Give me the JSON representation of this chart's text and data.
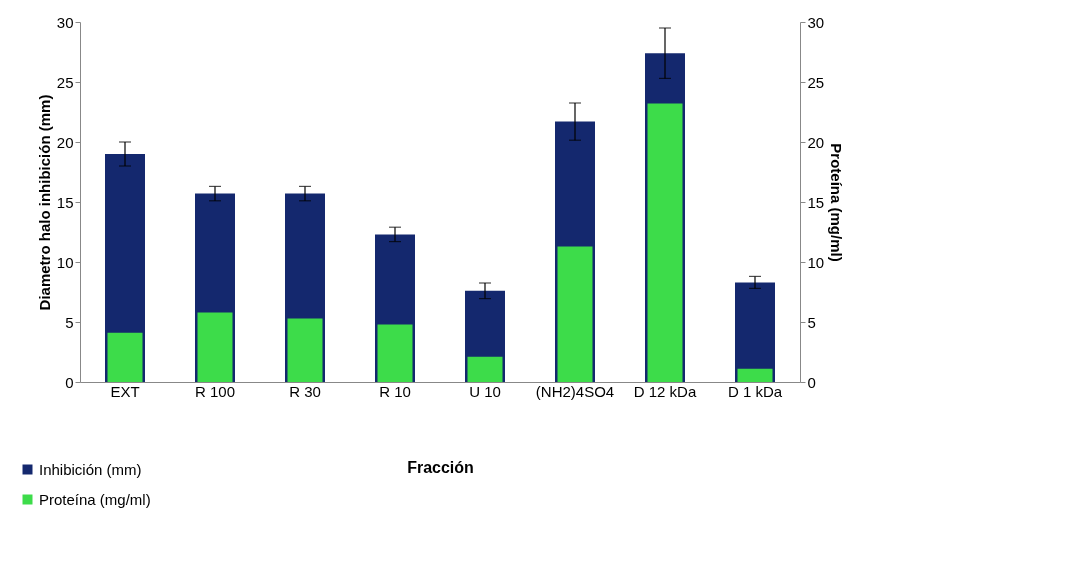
{
  "chart_data": {
    "type": "bar",
    "xlabel": "Fracción",
    "ylabel": "Diametro halo inhibición (mm)",
    "y2label": "Proteína (mg/ml)",
    "categories": [
      "EXT",
      "R 100",
      "R 30",
      "R 10",
      "U 10",
      "(NH2)4SO4",
      "D 12 kDa",
      "D 1 kDa"
    ],
    "series": [
      {
        "name": "Inhibición (mm)",
        "color": "#14286e",
        "values": [
          19.0,
          15.7,
          15.7,
          12.3,
          7.6,
          21.7,
          27.4,
          8.3
        ],
        "errors": [
          1.0,
          0.6,
          0.6,
          0.6,
          0.65,
          1.55,
          2.1,
          0.5
        ]
      },
      {
        "name": "Proteína (mg/ml)",
        "color": "#3ddc4a",
        "axis": "y2",
        "values": [
          4.1,
          5.8,
          5.3,
          4.8,
          2.1,
          11.3,
          23.2,
          1.1
        ]
      }
    ],
    "ylim": [
      0,
      30
    ],
    "yticks": [
      0,
      5,
      10,
      15,
      20,
      25,
      30
    ],
    "y2lim": [
      0,
      30
    ],
    "y2ticks": [
      0,
      5,
      10,
      15,
      20,
      25,
      30
    ],
    "grid": false,
    "legend": "bottom left"
  }
}
